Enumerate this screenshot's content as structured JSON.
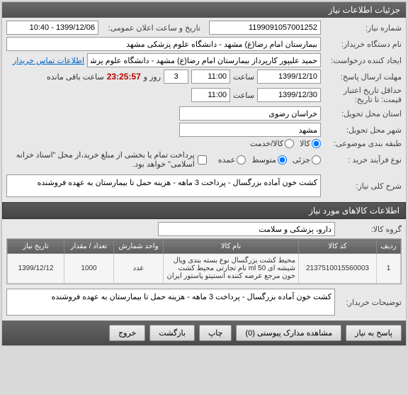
{
  "header": {
    "title": "جزئیات اطلاعات نیاز"
  },
  "need": {
    "labels": {
      "number": "شماره نیاز:",
      "org": "نام دستگاه خریدار:",
      "creator": "ایجاد کننده درخواست:",
      "announce_date": "تاریخ و ساعت اعلان عمومی:",
      "deadline_send": "مهلت ارسال پاسخ:",
      "deadline_credit": "حداقل تاریخ اعتبار قیمت: تا تاریخ:",
      "province": "استان محل تحویل:",
      "city": "شهر محل تحویل:",
      "group_budget": "طبقه بندی موضوعی:",
      "purchase_type": "نوع فرآیند خرید :",
      "summary": "شرح کلی نیاز:",
      "category": "گروه کالا:",
      "buyer_desc": "توضیحات خریدار:",
      "until": "تا تاریخ:",
      "hour": "ساعت",
      "and": "روز و",
      "remaining": "ساعت باقی مانده",
      "contact": "اطلاعات تماس خریدار"
    },
    "number": "1199091057001252",
    "org": "بیمارستان امام رضا(ع) مشهد - دانشگاه علوم پزشکی مشهد",
    "creator": "حمید علیپور کارپرداز بیمارستان امام رضا(ع) مشهد - دانشگاه علوم پزشکی مش",
    "announce_date": "1399/12/06 - 10:40",
    "deadline_date": "1399/12/10",
    "deadline_time": "11:00",
    "days_remain": "3",
    "timer": "23:25:57",
    "credit_date": "1399/12/30",
    "credit_time": "11:00",
    "province": "خراسان رضوی",
    "city": "مشهد",
    "budget_options": {
      "goods": "کالا",
      "service": "کالا/خدمت"
    },
    "purchase_options": {
      "low": "جزئی",
      "mid": "متوسط",
      "high": "عمده"
    },
    "national_pay_label": "پرداخت تمام یا بخشی از مبلغ خرید،از محل \"اسناد خزانه اسلامی\" خواهد بود.",
    "summary": "کشت خون آماده بزرگسال - پرداخت 3 ماهه - هزینه حمل تا بیمارستان به عهده فروشنده",
    "category": "دارو، پزشکی و سلامت",
    "buyer_desc": "کشت خون آماده بزرگسال - پرداخت 3 ماهه - هزینه حمل تا بیمارستان به عهده فروشنده"
  },
  "items_section": {
    "title": "اطلاعات کالاهای مورد نیاز"
  },
  "table": {
    "headers": [
      "ردیف",
      "کد کالا",
      "نام کالا",
      "واحد شمارش",
      "تعداد / مقدار",
      "تاریخ نیاز"
    ],
    "rows": [
      {
        "idx": "1",
        "code": "2137510015560003",
        "name": "محیط کشت بزرگسال نوع بسته بندی ویال شیشه ای ml 50   نام تجارتی محیط کشت خون مرجع عرضه کننده انستیتو پاستور ایران",
        "unit": "عدد",
        "qty": "1000",
        "date": "1399/12/12"
      }
    ]
  },
  "buttons": {
    "answer": "پاسخ به نیاز",
    "attachments": "مشاهده مدارک پیوستی  (0)",
    "print": "چاپ",
    "back": "بازگشت",
    "exit": "خروج"
  }
}
